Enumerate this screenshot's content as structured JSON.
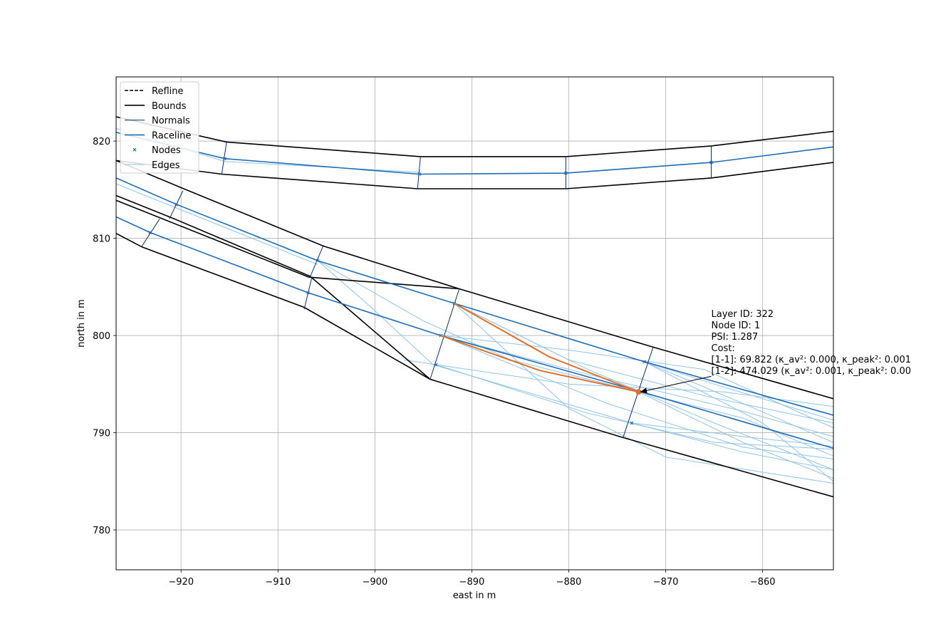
{
  "chart_data": {
    "type": "line",
    "xlabel": "east in m",
    "ylabel": "north in m",
    "xlim": [
      -926.7,
      -852.7
    ],
    "ylim": [
      775.9,
      826.6
    ],
    "xticks": [
      -920,
      -910,
      -900,
      -890,
      -880,
      -870,
      -860
    ],
    "yticks": [
      780,
      790,
      800,
      810,
      820
    ],
    "xtick_labels": [
      "−920",
      "−910",
      "−900",
      "−890",
      "−880",
      "−870",
      "−860"
    ],
    "ytick_labels": [
      "780",
      "790",
      "800",
      "810",
      "820"
    ],
    "grid": true,
    "legend_position": "top-left",
    "colors": {
      "bounds": "#000000",
      "normals": "#08306b",
      "raceline": "#1f6bb5",
      "nodes": "#1f6bb5",
      "edges": "#8fc3e8",
      "highlight": "#e0702a",
      "grid": "#b0b0b0"
    },
    "legend": [
      {
        "label": "Refline",
        "style": "dashed-black"
      },
      {
        "label": "Bounds",
        "style": "solid-black"
      },
      {
        "label": "Normals",
        "style": "thin-darkblue"
      },
      {
        "label": "Raceline",
        "style": "solid-blue"
      },
      {
        "label": "Nodes",
        "style": "x-marker-blue"
      },
      {
        "label": "Edges",
        "style": "thin-lightblue"
      }
    ],
    "bounds": [
      [
        [
          -926.7,
          822.5
        ],
        [
          -915.3,
          819.9
        ],
        [
          -895.3,
          818.4
        ],
        [
          -880.3,
          818.4
        ],
        [
          -865.3,
          819.5
        ],
        [
          -852.7,
          821.0
        ]
      ],
      [
        [
          -926.7,
          818.0
        ],
        [
          -915.8,
          816.6
        ],
        [
          -895.6,
          815.1
        ],
        [
          -880.3,
          815.1
        ],
        [
          -865.3,
          816.2
        ],
        [
          -852.7,
          817.8
        ]
      ],
      [
        [
          -926.7,
          818.0
        ],
        [
          -919.5,
          815.0
        ],
        [
          -905.3,
          809.2
        ],
        [
          -891.3,
          804.8
        ],
        [
          -871.3,
          798.8
        ],
        [
          -852.7,
          793.5
        ]
      ],
      [
        [
          -926.7,
          814.4
        ],
        [
          -920.7,
          812.0
        ],
        [
          -906.7,
          806.1
        ],
        [
          -894.3,
          795.5
        ],
        [
          -874.4,
          789.5
        ],
        [
          -852.7,
          783.4
        ]
      ],
      [
        [
          -926.7,
          813.9
        ],
        [
          -921.9,
          812.0
        ],
        [
          -906.8,
          806.0
        ],
        [
          -891.3,
          804.8
        ]
      ],
      [
        [
          -926.7,
          810.5
        ],
        [
          -924.0,
          809.1
        ],
        [
          -907.3,
          802.9
        ],
        [
          -894.3,
          795.5
        ]
      ]
    ],
    "normals": [
      [
        [
          -915.3,
          819.9
        ],
        [
          -915.8,
          816.6
        ]
      ],
      [
        [
          -895.3,
          818.4
        ],
        [
          -895.6,
          815.1
        ]
      ],
      [
        [
          -880.3,
          818.4
        ],
        [
          -880.3,
          815.1
        ]
      ],
      [
        [
          -865.3,
          819.5
        ],
        [
          -865.3,
          816.2
        ]
      ],
      [
        [
          -919.8,
          814.9
        ],
        [
          -921.2,
          812.0
        ]
      ],
      [
        [
          -905.3,
          809.3
        ],
        [
          -906.7,
          806.0
        ]
      ],
      [
        [
          -891.3,
          804.8
        ],
        [
          -894.3,
          795.5
        ]
      ],
      [
        [
          -871.3,
          798.8
        ],
        [
          -874.4,
          789.5
        ]
      ],
      [
        [
          -922.2,
          812.0
        ],
        [
          -924.1,
          809.1
        ]
      ],
      [
        [
          -906.5,
          806.0
        ],
        [
          -907.3,
          802.7
        ]
      ]
    ],
    "raceline": [
      {
        "name": "upper-track",
        "points": [
          [
            -926.7,
            820.9
          ],
          [
            -915.5,
            818.2
          ],
          [
            -895.4,
            816.6
          ],
          [
            -880.3,
            816.7
          ],
          [
            -865.3,
            817.8
          ],
          [
            -852.7,
            819.4
          ]
        ]
      },
      {
        "name": "middle-track",
        "points": [
          [
            -926.7,
            816.2
          ],
          [
            -920.5,
            813.5
          ],
          [
            -905.9,
            807.7
          ],
          [
            -891.8,
            803.3
          ],
          [
            -872.2,
            797.3
          ],
          [
            -852.7,
            791.8
          ]
        ]
      },
      {
        "name": "lower-track",
        "points": [
          [
            -926.7,
            812.2
          ],
          [
            -923.2,
            810.6
          ],
          [
            -906.9,
            804.4
          ],
          [
            -893.2,
            800.0
          ],
          [
            -872.5,
            794.2
          ],
          [
            -852.7,
            788.4
          ]
        ]
      }
    ],
    "nodes": [
      [
        -915.5,
        818.2
      ],
      [
        -895.4,
        816.6
      ],
      [
        -880.3,
        816.7
      ],
      [
        -865.3,
        817.8
      ],
      [
        -920.5,
        813.5
      ],
      [
        -905.9,
        807.7
      ],
      [
        -891.8,
        803.3
      ],
      [
        -872.2,
        797.3
      ],
      [
        -923.2,
        810.6
      ],
      [
        -906.9,
        804.4
      ],
      [
        -893.2,
        800.0
      ],
      [
        -893.7,
        797.0
      ],
      [
        -872.8,
        794.2
      ],
      [
        -873.5,
        791.0
      ]
    ],
    "edges": [
      [
        [
          -926.7,
          821.3
        ],
        [
          -915.5,
          817.9
        ],
        [
          -895.4,
          816.8
        ]
      ],
      [
        [
          -926.7,
          815.6
        ],
        [
          -905.9,
          807.3
        ]
      ],
      [
        [
          -905.9,
          807.7
        ],
        [
          -900.5,
          803.0
        ],
        [
          -894.0,
          797.0
        ],
        [
          -873.5,
          791.0
        ]
      ],
      [
        [
          -905.9,
          807.7
        ],
        [
          -895.0,
          801.5
        ],
        [
          -886.0,
          797.5
        ],
        [
          -872.8,
          794.2
        ]
      ],
      [
        [
          -891.8,
          803.3
        ],
        [
          -878.0,
          796.5
        ],
        [
          -865.0,
          791.0
        ],
        [
          -852.7,
          786.2
        ]
      ],
      [
        [
          -891.8,
          803.3
        ],
        [
          -880.0,
          797.5
        ],
        [
          -866.0,
          793.8
        ],
        [
          -852.7,
          791.0
        ]
      ],
      [
        [
          -891.8,
          803.3
        ],
        [
          -886.0,
          798.0
        ],
        [
          -880.0,
          792.5
        ],
        [
          -870.0,
          787.5
        ],
        [
          -852.7,
          784.8
        ]
      ],
      [
        [
          -893.2,
          800.0
        ],
        [
          -880.0,
          798.5
        ],
        [
          -866.0,
          796.5
        ],
        [
          -852.7,
          790.5
        ]
      ],
      [
        [
          -893.2,
          800.0
        ],
        [
          -878.0,
          796.0
        ],
        [
          -862.0,
          792.2
        ],
        [
          -852.7,
          789.6
        ]
      ],
      [
        [
          -893.2,
          800.0
        ],
        [
          -876.0,
          793.0
        ],
        [
          -862.0,
          788.5
        ],
        [
          -852.7,
          787.3
        ]
      ],
      [
        [
          -893.7,
          797.0
        ],
        [
          -880.0,
          795.0
        ],
        [
          -864.0,
          794.2
        ],
        [
          -852.7,
          792.7
        ]
      ],
      [
        [
          -893.7,
          797.0
        ],
        [
          -878.0,
          792.0
        ],
        [
          -865.0,
          789.0
        ],
        [
          -852.7,
          788.3
        ]
      ],
      [
        [
          -872.2,
          797.3
        ],
        [
          -862.0,
          793.0
        ],
        [
          -852.7,
          789.0
        ]
      ],
      [
        [
          -872.2,
          797.3
        ],
        [
          -860.0,
          791.0
        ],
        [
          -852.7,
          785.0
        ]
      ],
      [
        [
          -872.8,
          794.2
        ],
        [
          -862.0,
          791.5
        ],
        [
          -852.7,
          787.6
        ]
      ],
      [
        [
          -872.8,
          794.2
        ],
        [
          -862.0,
          789.0
        ],
        [
          -852.7,
          785.3
        ]
      ],
      [
        [
          -873.5,
          791.0
        ],
        [
          -862.0,
          788.0
        ],
        [
          -852.7,
          786.2
        ]
      ],
      [
        [
          -873.5,
          791.0
        ],
        [
          -862.0,
          789.6
        ],
        [
          -852.7,
          788.6
        ]
      ],
      [
        [
          -872.2,
          797.3
        ],
        [
          -865.0,
          795.0
        ],
        [
          -852.7,
          791.3
        ]
      ],
      [
        [
          -897.0,
          797.5
        ],
        [
          -893.7,
          797.0
        ]
      ]
    ],
    "highlight_edges": [
      [
        [
          -891.8,
          803.3
        ],
        [
          -882.0,
          797.8
        ],
        [
          -872.8,
          794.2
        ]
      ],
      [
        [
          -893.2,
          800.0
        ],
        [
          -883.0,
          796.4
        ],
        [
          -872.8,
          794.2
        ]
      ]
    ],
    "highlight_node": [
      -872.8,
      794.2
    ],
    "annotation": {
      "arrow_from": [
        -865.3,
        795.8
      ],
      "arrow_to": [
        -872.6,
        794.2
      ],
      "text_anchor": [
        -865.3,
        802.0
      ],
      "lines": [
        "Layer ID: 322",
        "Node ID: 1",
        "PSI: 1.287",
        "Cost:",
        "[1-1]: 69.822 (κ_av²: 0.000, κ_peak²: 0.001",
        "[1-2]: 474.029 (κ_av²: 0.001, κ_peak²: 0.00"
      ]
    }
  }
}
